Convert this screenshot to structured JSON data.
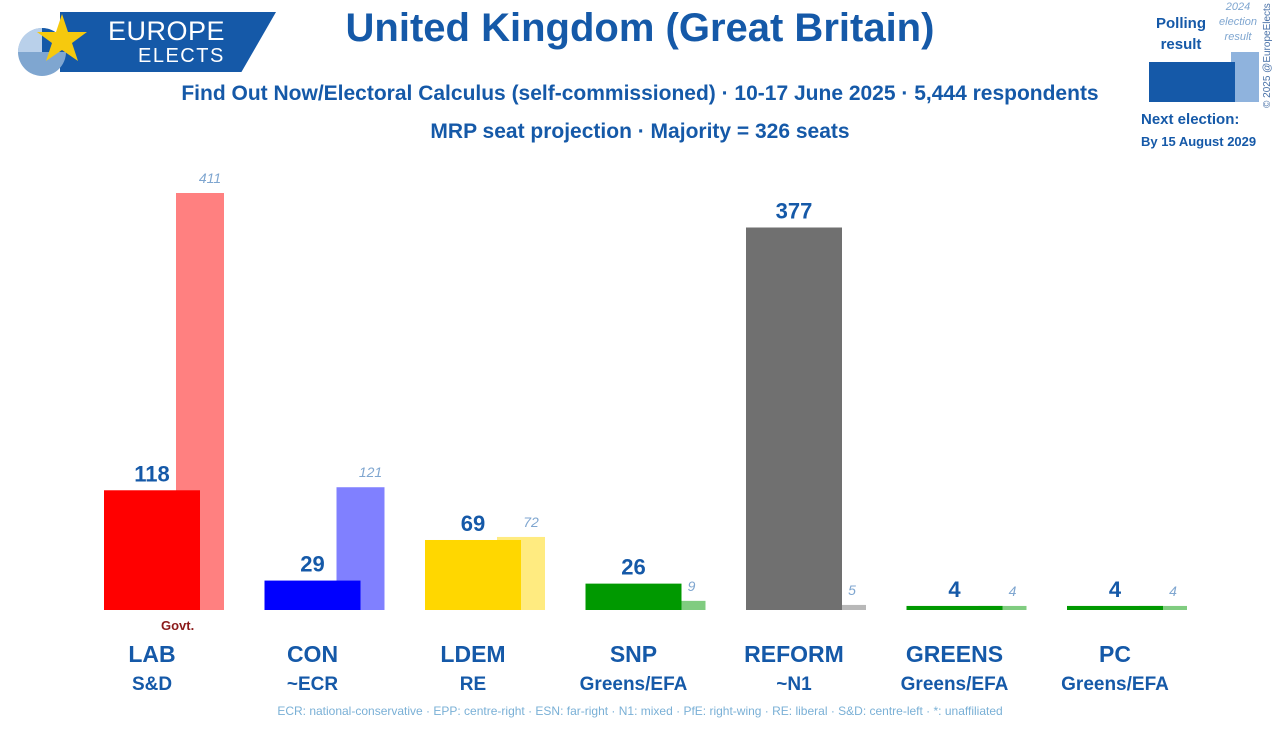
{
  "logo": {
    "line1": "EUROPE",
    "line2": "ELECTS"
  },
  "title": "United Kingdom (Great Britain)",
  "subtitle": "Find Out Now/Electoral Calculus (self-commissioned) · 10-17 June 2025 · 5,444 respondents",
  "note": "MRP seat projection · Majority = 326 seats",
  "legend": {
    "polling_result": "Polling result",
    "election_result": "2024 election result"
  },
  "copyright": "© 2025 @EuropeElects",
  "next_election": {
    "label": "Next election:",
    "date": "By 15 August 2029"
  },
  "govt_label": "Govt.",
  "footer": "ECR: national-conservative · EPP: centre-right · ESN: far-right · N1: mixed · PfE: right-wing · RE: liberal · S&D: centre-left · *: unaffiliated",
  "colors": {
    "brand": "#1559a8"
  },
  "chart_data": {
    "type": "bar",
    "title": "United Kingdom (Great Britain)",
    "unit": "seats",
    "categories": [
      "LAB",
      "CON",
      "LDEM",
      "SNP",
      "REFORM",
      "GREENS",
      "PC"
    ],
    "groups": [
      "S&D",
      "~ECR",
      "RE",
      "Greens/EFA",
      "~N1",
      "Greens/EFA",
      "Greens/EFA"
    ],
    "series": [
      {
        "name": "Polling result",
        "values": [
          118,
          29,
          69,
          26,
          377,
          4,
          4
        ]
      },
      {
        "name": "2024 election result",
        "values": [
          411,
          121,
          72,
          9,
          5,
          4,
          4
        ]
      }
    ],
    "colors": [
      "#ff0000",
      "#0000ff",
      "#ffd700",
      "#009900",
      "#707070",
      "#009900",
      "#009900"
    ],
    "prev_colors": [
      "#ff8080",
      "#8080ff",
      "#ffeb80",
      "#80cc80",
      "#b8b8b8",
      "#80cc80",
      "#80cc80"
    ],
    "ylim": [
      0,
      411
    ]
  }
}
